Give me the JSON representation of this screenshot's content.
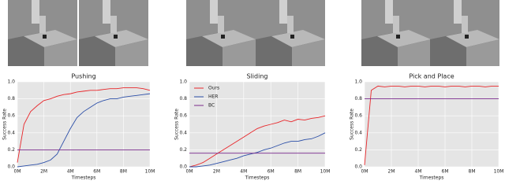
{
  "chart_data": [
    {
      "type": "line",
      "title": "Pushing",
      "xlabel": "Timesteps",
      "ylabel": "Success Rate",
      "x": [
        0,
        0.5,
        1,
        1.5,
        2,
        2.5,
        3,
        3.5,
        4,
        4.5,
        5,
        5.5,
        6,
        6.5,
        7,
        7.5,
        8,
        8.5,
        9,
        9.5,
        10
      ],
      "series": [
        {
          "color": "#e8262a",
          "values": [
            0.05,
            0.5,
            0.65,
            0.72,
            0.78,
            0.8,
            0.83,
            0.85,
            0.86,
            0.88,
            0.89,
            0.9,
            0.9,
            0.91,
            0.92,
            0.92,
            0.93,
            0.93,
            0.93,
            0.92,
            0.9
          ]
        },
        {
          "color": "#2c4fa8",
          "values": [
            0,
            0.01,
            0.02,
            0.03,
            0.05,
            0.08,
            0.15,
            0.3,
            0.45,
            0.58,
            0.65,
            0.7,
            0.75,
            0.78,
            0.8,
            0.8,
            0.82,
            0.83,
            0.84,
            0.85,
            0.86
          ]
        },
        {
          "color": "#7a2a8c",
          "values": [
            0.2,
            0.2,
            0.2,
            0.2,
            0.2,
            0.2,
            0.2,
            0.2,
            0.2,
            0.2,
            0.2,
            0.2,
            0.2,
            0.2,
            0.2,
            0.2,
            0.2,
            0.2,
            0.2,
            0.2,
            0.2
          ]
        }
      ],
      "xlim": [
        0,
        10
      ],
      "ylim": [
        0,
        1
      ],
      "xticks": [
        {
          "value": 0,
          "label": "0M"
        },
        {
          "value": 2,
          "label": "2M"
        },
        {
          "value": 4,
          "label": "4M"
        },
        {
          "value": 6,
          "label": "6M"
        },
        {
          "value": 8,
          "label": "8M"
        },
        {
          "value": 10,
          "label": "10M"
        }
      ],
      "yticks": [
        {
          "value": 0,
          "label": "0.0"
        },
        0.2,
        0.4,
        0.6,
        0.8,
        {
          "value": 1,
          "label": "1.0"
        }
      ],
      "grid": true
    },
    {
      "type": "line",
      "title": "Sliding",
      "xlabel": "Timesteps",
      "ylabel": "Success Rate",
      "x": [
        0,
        0.5,
        1,
        1.5,
        2,
        2.5,
        3,
        3.5,
        4,
        4.5,
        5,
        5.5,
        6,
        6.5,
        7,
        7.5,
        8,
        8.5,
        9,
        9.5,
        10
      ],
      "series": [
        {
          "name": "Ours",
          "color": "#e8262a",
          "values": [
            0,
            0.02,
            0.05,
            0.1,
            0.15,
            0.2,
            0.25,
            0.3,
            0.35,
            0.4,
            0.45,
            0.48,
            0.5,
            0.52,
            0.55,
            0.53,
            0.56,
            0.55,
            0.57,
            0.58,
            0.6
          ]
        },
        {
          "name": "HER",
          "color": "#2c4fa8",
          "values": [
            0,
            0,
            0.01,
            0.02,
            0.04,
            0.06,
            0.08,
            0.1,
            0.13,
            0.15,
            0.17,
            0.2,
            0.22,
            0.25,
            0.28,
            0.3,
            0.3,
            0.32,
            0.33,
            0.36,
            0.4
          ]
        },
        {
          "name": "BC",
          "color": "#7a2a8c",
          "values": [
            0.16,
            0.16,
            0.16,
            0.16,
            0.16,
            0.16,
            0.16,
            0.16,
            0.16,
            0.16,
            0.16,
            0.16,
            0.16,
            0.16,
            0.16,
            0.16,
            0.16,
            0.16,
            0.16,
            0.16,
            0.16
          ]
        }
      ],
      "legend": "upper left",
      "xlim": [
        0,
        10
      ],
      "ylim": [
        0,
        1
      ],
      "xticks": [
        {
          "value": 0,
          "label": "0M"
        },
        {
          "value": 2,
          "label": "2M"
        },
        {
          "value": 4,
          "label": "4M"
        },
        {
          "value": 6,
          "label": "6M"
        },
        {
          "value": 8,
          "label": "8M"
        },
        {
          "value": 10,
          "label": "10M"
        }
      ],
      "yticks": [
        {
          "value": 0,
          "label": "0.0"
        },
        0.2,
        0.4,
        0.6,
        0.8,
        {
          "value": 1,
          "label": "1.0"
        }
      ],
      "grid": true
    },
    {
      "type": "line",
      "title": "Pick and Place",
      "xlabel": "Timesteps",
      "ylabel": "Success Rate",
      "x": [
        0,
        0.5,
        1,
        1.5,
        2,
        2.5,
        3,
        3.5,
        4,
        4.5,
        5,
        5.5,
        6,
        6.5,
        7,
        7.5,
        8,
        8.5,
        9,
        9.5,
        10
      ],
      "series": [
        {
          "color": "#e8262a",
          "values": [
            0.02,
            0.9,
            0.95,
            0.94,
            0.95,
            0.95,
            0.94,
            0.95,
            0.95,
            0.94,
            0.95,
            0.95,
            0.94,
            0.95,
            0.95,
            0.94,
            0.95,
            0.95,
            0.94,
            0.95,
            0.95
          ]
        },
        {
          "color": "#7a2a8c",
          "values": [
            0.8,
            0.8,
            0.8,
            0.8,
            0.8,
            0.8,
            0.8,
            0.8,
            0.8,
            0.8,
            0.8,
            0.8,
            0.8,
            0.8,
            0.8,
            0.8,
            0.8,
            0.8,
            0.8,
            0.8,
            0.8
          ]
        }
      ],
      "xlim": [
        0,
        10
      ],
      "ylim": [
        0,
        1
      ],
      "xticks": [
        {
          "value": 0,
          "label": "0M"
        },
        {
          "value": 2,
          "label": "2M"
        },
        {
          "value": 4,
          "label": "4M"
        },
        {
          "value": 6,
          "label": "6M"
        },
        {
          "value": 8,
          "label": "8M"
        },
        {
          "value": 10,
          "label": "10M"
        }
      ],
      "yticks": [
        {
          "value": 0,
          "label": "0.0"
        },
        0.2,
        0.4,
        0.6,
        0.8,
        {
          "value": 1,
          "label": "1.0"
        }
      ],
      "grid": true
    }
  ]
}
